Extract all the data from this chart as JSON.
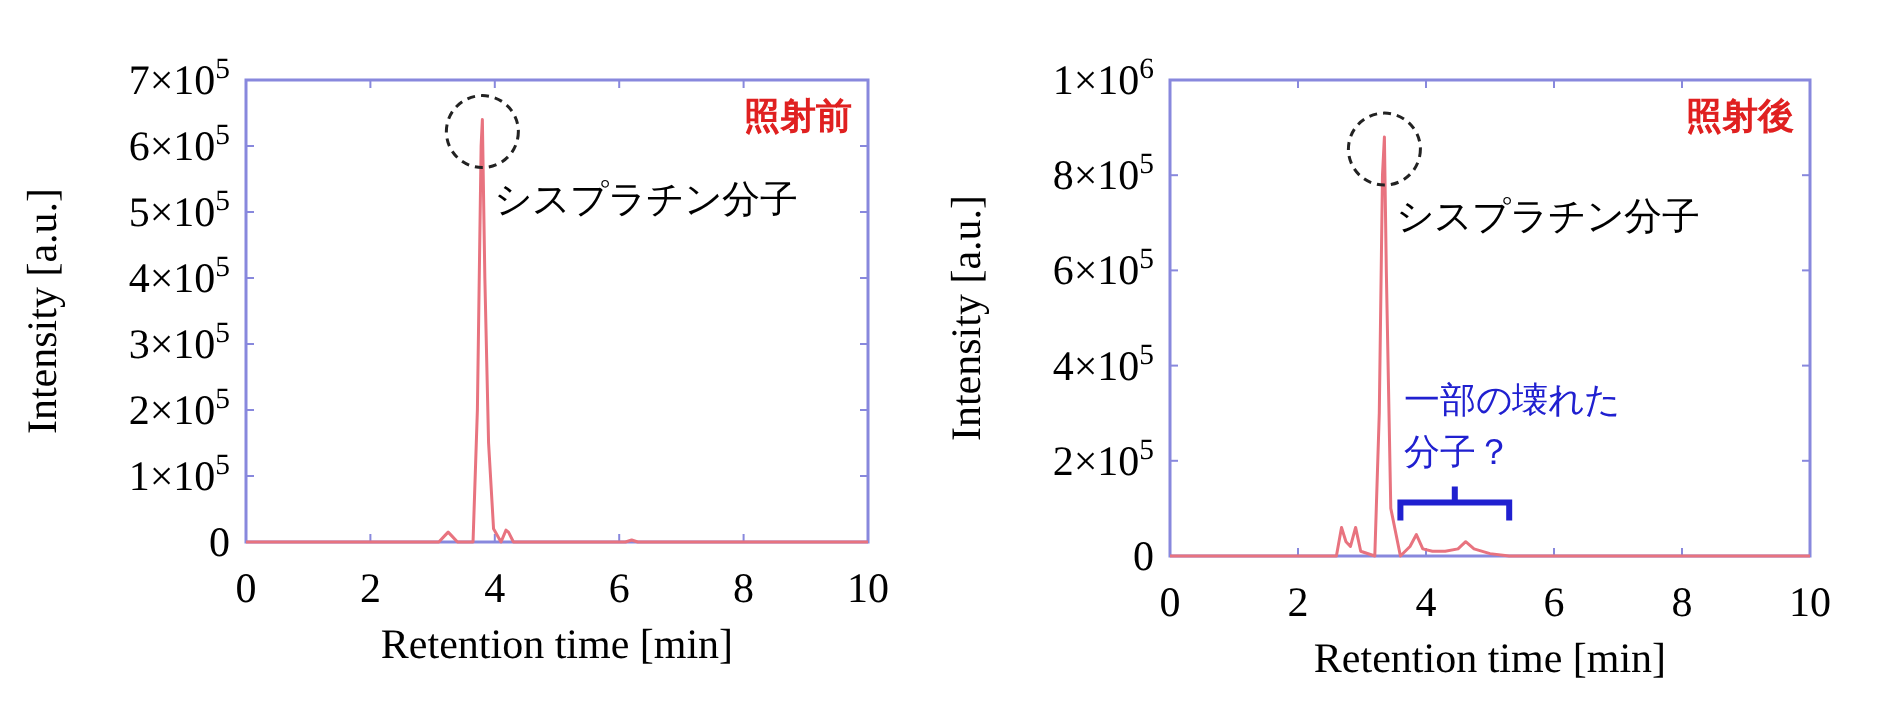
{
  "chart_data": [
    {
      "type": "line",
      "title": "照射前",
      "xlabel": "Retention time [min]",
      "ylabel": "Intensity [a.u.]",
      "series": [
        {
          "color": "#e8737f",
          "x": [
            0,
            3.1,
            3.2,
            3.25,
            3.3,
            3.4,
            3.65,
            3.72,
            3.78,
            3.8,
            3.84,
            3.9,
            3.98,
            4.1,
            4.18,
            4.22,
            4.3,
            4.4,
            6.1,
            6.2,
            6.3,
            10
          ],
          "values": [
            0,
            0,
            10000,
            15000,
            10000,
            0,
            0,
            200000,
            600000,
            640000,
            400000,
            150000,
            20000,
            0,
            18000,
            15000,
            0,
            0,
            0,
            3000,
            0,
            0
          ]
        }
      ],
      "xlim": [
        0,
        10
      ],
      "xticks": [
        0,
        2,
        4,
        6,
        8,
        10
      ],
      "ylim": [
        0,
        700000
      ],
      "yticks": [
        0,
        {
          "value": 100000,
          "label": "1×10$^{5}$"
        },
        {
          "value": 200000,
          "label": "2×10$^{5}$"
        },
        {
          "value": 300000,
          "label": "3×10$^{5}$"
        },
        {
          "value": 400000,
          "label": "4×10$^{5}$"
        },
        {
          "value": 500000,
          "label": "5×10$^{5}$"
        },
        {
          "value": 600000,
          "label": "6×10$^{5}$"
        },
        {
          "value": 700000,
          "label": "7×10$^{5}$"
        }
      ],
      "annotations": [
        {
          "text": "シスプラチン分子",
          "x": 3.8,
          "y": 640000
        }
      ],
      "grid": false,
      "marker": "none",
      "line_style": "solid"
    },
    {
      "type": "line",
      "title": "照射後",
      "xlabel": "Retention time [min]",
      "ylabel": "Intensity [a.u.]",
      "series": [
        {
          "color": "#e8737f",
          "x": [
            0,
            2.6,
            2.68,
            2.75,
            2.82,
            2.9,
            2.98,
            3.2,
            3.27,
            3.32,
            3.35,
            3.38,
            3.45,
            3.6,
            3.75,
            3.85,
            3.95,
            4.1,
            4.3,
            4.5,
            4.62,
            4.75,
            5.0,
            5.3,
            10
          ],
          "values": [
            0,
            0,
            60000,
            30000,
            20000,
            60000,
            10000,
            0,
            300000,
            800000,
            880000,
            600000,
            100000,
            0,
            20000,
            45000,
            15000,
            10000,
            10000,
            15000,
            30000,
            15000,
            5000,
            0,
            0
          ]
        }
      ],
      "xlim": [
        0,
        10
      ],
      "xticks": [
        0,
        2,
        4,
        6,
        8,
        10
      ],
      "ylim": [
        0,
        1000000
      ],
      "yticks": [
        0,
        {
          "value": 200000,
          "label": "2×10$^{5}$"
        },
        {
          "value": 400000,
          "label": "4×10$^{5}$"
        },
        {
          "value": 600000,
          "label": "6×10$^{5}$"
        },
        {
          "value": 800000,
          "label": "8×10$^{5}$"
        },
        {
          "value": 1000000,
          "label": "1×10$^{6}$"
        }
      ],
      "annotations": [
        {
          "text": "シスプラチン分子",
          "x": 3.35,
          "y": 880000
        },
        "一部の壊れた分子？"
      ],
      "grid": false,
      "marker": "none",
      "line_style": "solid"
    }
  ]
}
